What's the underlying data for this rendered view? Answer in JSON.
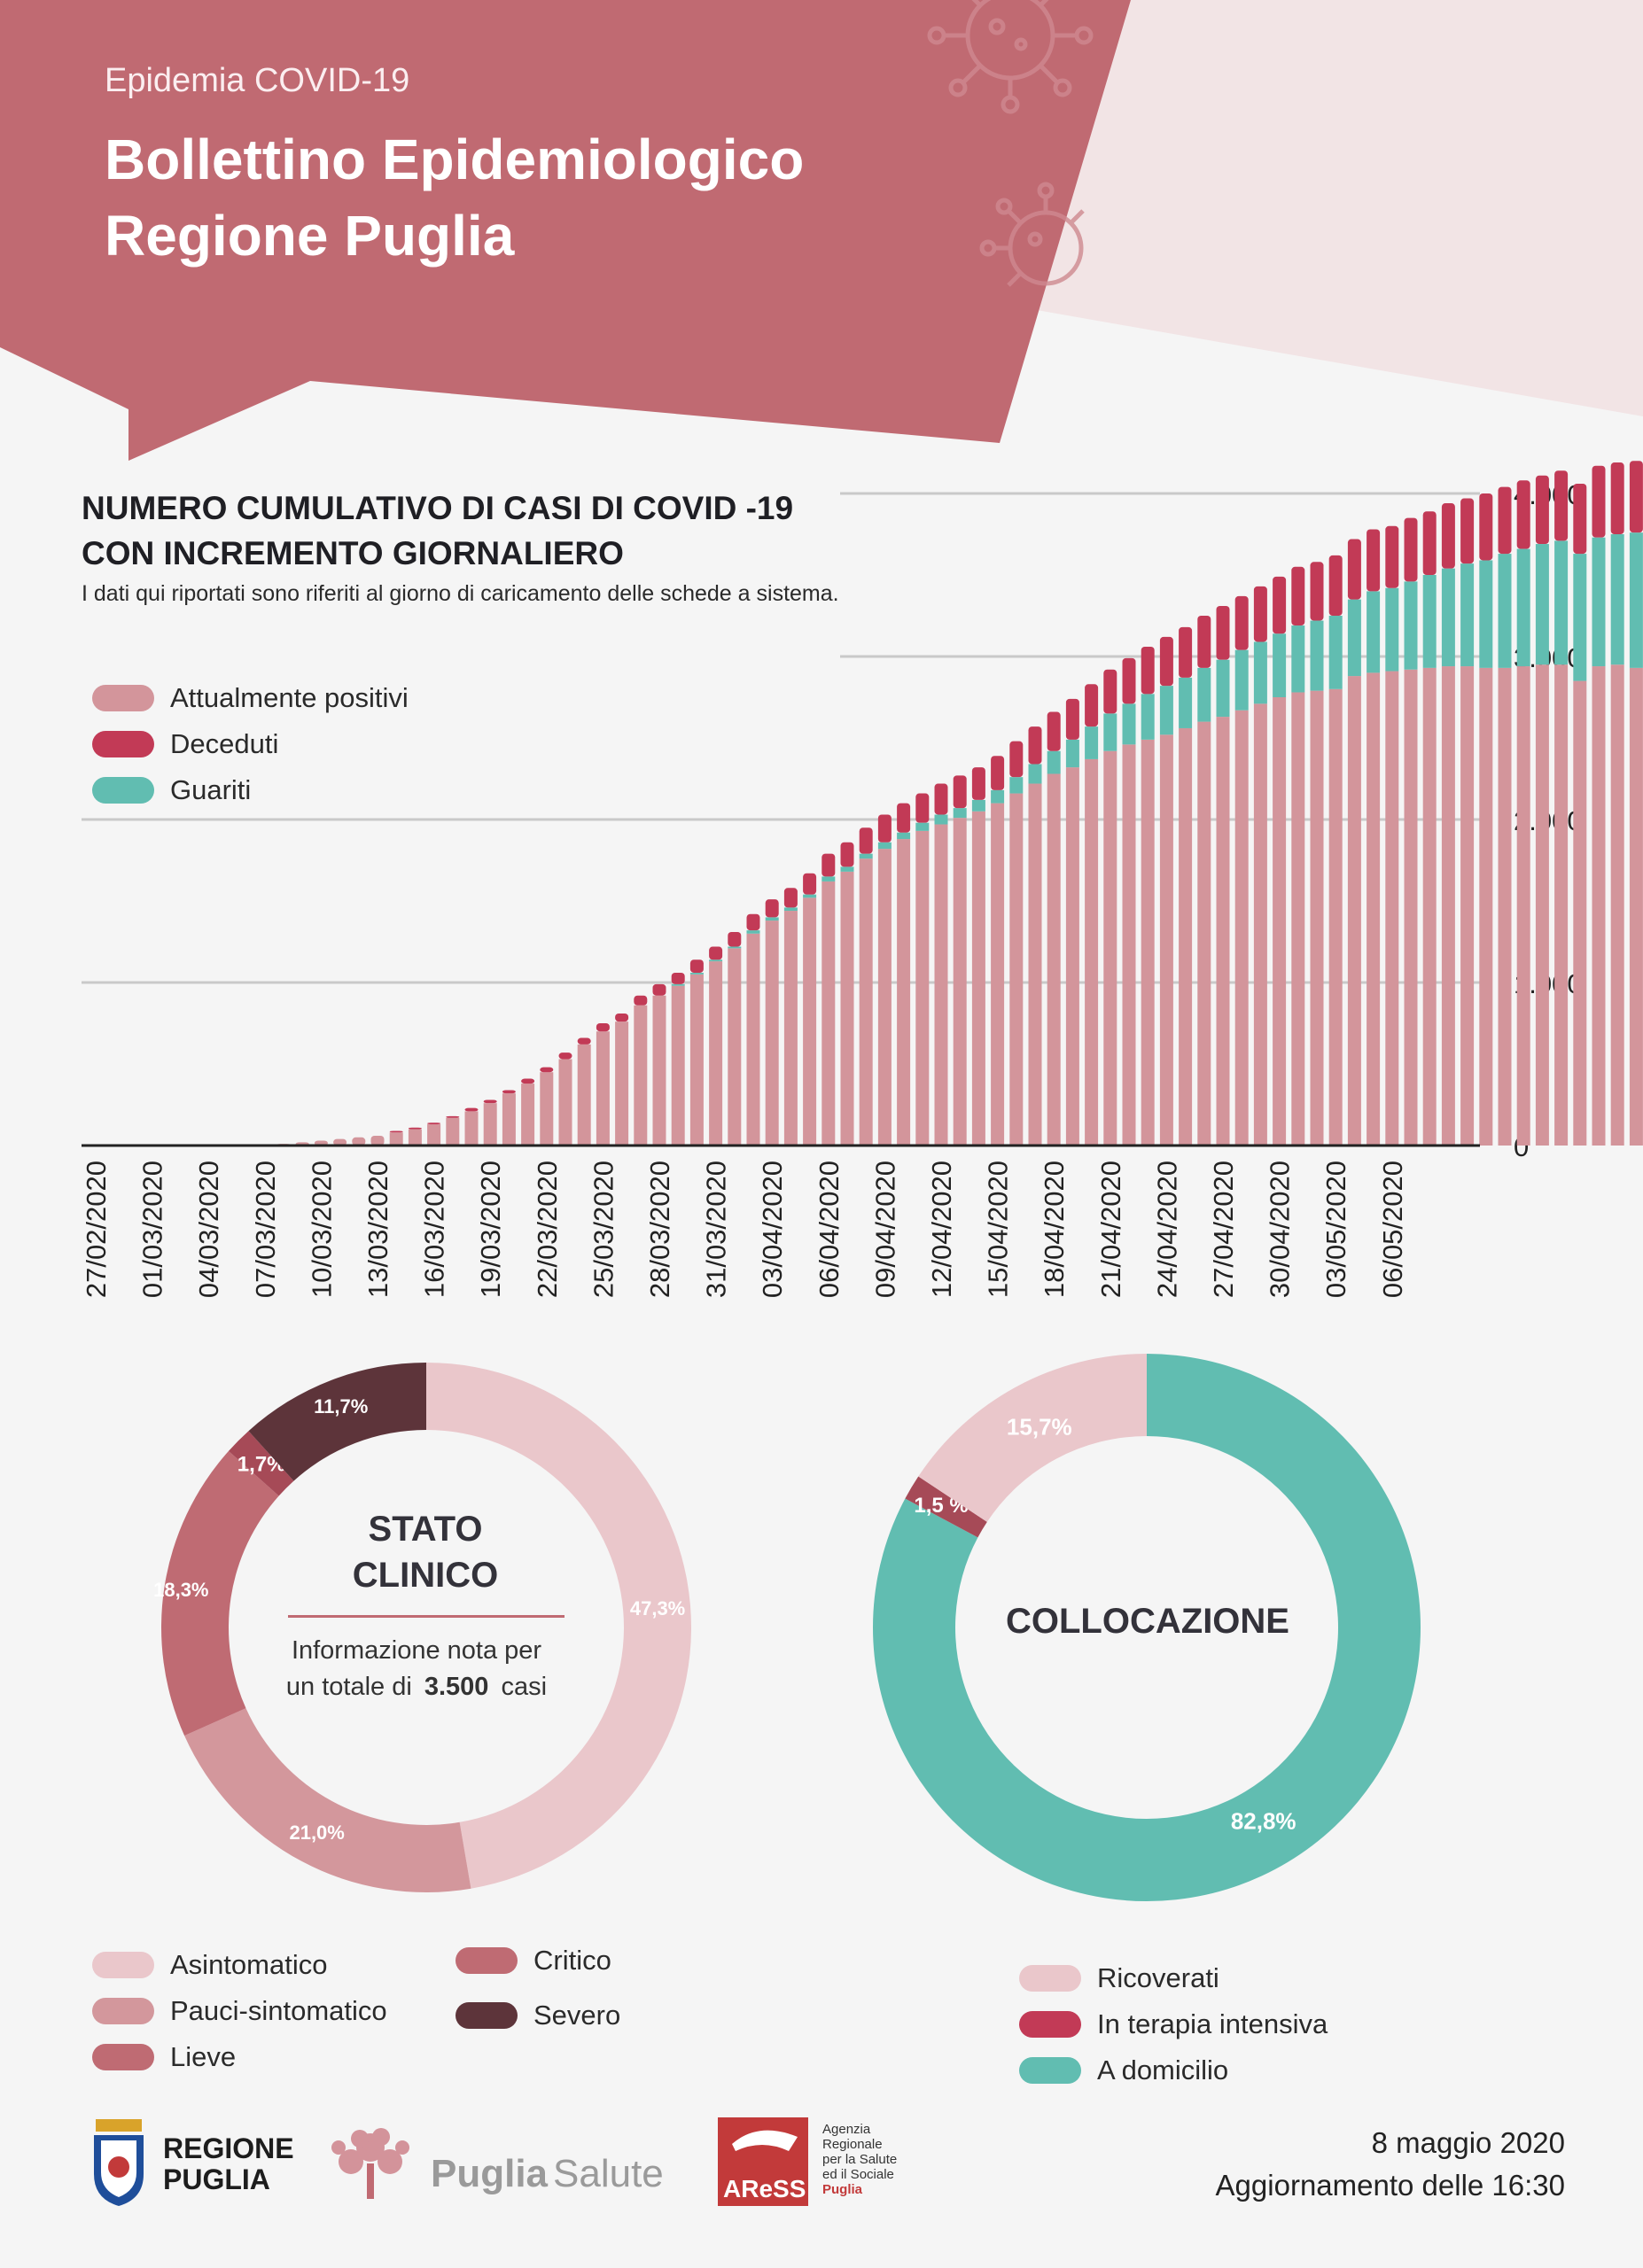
{
  "header": {
    "subtitle": "Epidemia COVID-19",
    "title_line1": "Bollettino Epidemiologico",
    "title_line2": "Regione Puglia"
  },
  "colors": {
    "header_rose": "#c06a72",
    "positivi": "#d3959b",
    "deceduti": "#c23a56",
    "guariti": "#61bdb1",
    "asintomatico": "#eac7cb",
    "pauci": "#d3979c",
    "lieve": "#bf6b73",
    "critico_segment": "#a64a57",
    "severo": "#5d343a",
    "ricoverati": "#eac7cb",
    "terapia_intensiva": "#a64a57",
    "domicilio": "#61bdb1"
  },
  "chart_data": [
    {
      "type": "bar",
      "stacked": true,
      "title_line1": "NUMERO CUMULATIVO DI CASI DI COVID -19",
      "title_line2": "CON INCREMENTO GIORNALIERO",
      "note": "I dati qui riportati sono riferiti al giorno di caricamento delle schede a sistema.",
      "y_ticks": [
        "0",
        "1.000",
        "2.000",
        "3.000",
        "4.000"
      ],
      "ylim": [
        0,
        4400
      ],
      "y_axis_side": "right",
      "grid": true,
      "legend_position": "top-left",
      "legend": [
        "Attualmente positivi",
        "Deceduti",
        "Guariti"
      ],
      "start_date": "27/02/2020",
      "x_tick_labels": [
        "27/02/2020",
        "01/03/2020",
        "04/03/2020",
        "07/03/2020",
        "10/03/2020",
        "13/03/2020",
        "16/03/2020",
        "19/03/2020",
        "22/03/2020",
        "25/03/2020",
        "28/03/2020",
        "31/03/2020",
        "03/04/2020",
        "06/04/2020",
        "09/04/2020",
        "12/04/2020",
        "15/04/2020",
        "18/04/2020",
        "21/04/2020",
        "24/04/2020",
        "27/04/2020",
        "30/04/2020",
        "03/05/2020",
        "06/05/2020"
      ],
      "series": [
        {
          "name": "Attualmente positivi",
          "values": [
            0,
            0,
            0,
            0,
            0,
            0,
            0,
            0,
            0,
            0,
            10,
            20,
            30,
            40,
            50,
            60,
            80,
            100,
            130,
            170,
            210,
            260,
            320,
            380,
            450,
            530,
            620,
            700,
            760,
            860,
            920,
            980,
            1050,
            1130,
            1210,
            1300,
            1380,
            1440,
            1520,
            1620,
            1680,
            1760,
            1820,
            1880,
            1930,
            1970,
            2010,
            2050,
            2100,
            2160,
            2220,
            2280,
            2320,
            2370,
            2420,
            2460,
            2490,
            2520,
            2560,
            2600,
            2630,
            2670,
            2710,
            2750,
            2780,
            2790,
            2800,
            2880,
            2900,
            2910,
            2920,
            2930,
            2940,
            2940,
            2930,
            2930,
            2940,
            2950,
            2950,
            2850,
            2940,
            2950,
            2930,
            2900,
            2800,
            2740
          ]
        },
        {
          "name": "Guariti",
          "values": [
            0,
            0,
            0,
            0,
            0,
            0,
            0,
            0,
            0,
            0,
            0,
            0,
            0,
            0,
            0,
            0,
            0,
            0,
            0,
            0,
            0,
            0,
            0,
            0,
            0,
            0,
            0,
            0,
            0,
            0,
            0,
            10,
            10,
            10,
            10,
            20,
            20,
            20,
            20,
            30,
            30,
            30,
            40,
            40,
            50,
            60,
            60,
            70,
            80,
            100,
            120,
            140,
            170,
            200,
            230,
            250,
            280,
            300,
            310,
            330,
            350,
            370,
            380,
            390,
            410,
            430,
            450,
            470,
            500,
            510,
            540,
            570,
            600,
            630,
            660,
            700,
            720,
            740,
            760,
            780,
            790,
            800,
            830,
            860,
            1000,
            1080
          ]
        },
        {
          "name": "Deceduti",
          "values": [
            0,
            0,
            0,
            0,
            0,
            0,
            0,
            0,
            0,
            0,
            0,
            0,
            0,
            0,
            0,
            0,
            10,
            10,
            10,
            10,
            20,
            20,
            20,
            30,
            30,
            40,
            40,
            50,
            50,
            60,
            70,
            70,
            80,
            80,
            90,
            100,
            110,
            120,
            130,
            140,
            150,
            160,
            170,
            180,
            180,
            190,
            200,
            200,
            210,
            220,
            230,
            240,
            250,
            260,
            270,
            280,
            290,
            300,
            310,
            320,
            330,
            330,
            340,
            350,
            360,
            360,
            370,
            370,
            380,
            380,
            390,
            390,
            400,
            400,
            410,
            410,
            420,
            420,
            430,
            430,
            440,
            440,
            440,
            440,
            450,
            450
          ]
        }
      ]
    },
    {
      "type": "pie",
      "donut": true,
      "center_title_line1": "STATO",
      "center_title_line2": "CLINICO",
      "center_text_line1": "Informazione nota per",
      "center_text_prefix": "un totale di",
      "center_text_value": "3.500",
      "center_text_suffix": "casi",
      "slices": [
        {
          "name": "Asintomatico",
          "value": 47.3,
          "label": "47,3%"
        },
        {
          "name": "Pauci-sintomatico",
          "value": 21.0,
          "label": "21,0%"
        },
        {
          "name": "Lieve",
          "value": 18.3,
          "label": "18,3%"
        },
        {
          "name": "Critico",
          "value": 1.7,
          "label": "1,7%"
        },
        {
          "name": "Severo",
          "value": 11.7,
          "label": "11,7%"
        }
      ],
      "legend": [
        "Asintomatico",
        "Pauci-sintomatico",
        "Lieve",
        "Critico",
        "Severo"
      ]
    },
    {
      "type": "pie",
      "donut": true,
      "center_title": "COLLOCAZIONE",
      "slices": [
        {
          "name": "A domicilio",
          "value": 82.8,
          "label": "82,8%"
        },
        {
          "name": "In terapia intensiva",
          "value": 1.5,
          "label": "1,5 %"
        },
        {
          "name": "Ricoverati",
          "value": 15.7,
          "label": "15,7%"
        }
      ],
      "legend": [
        "Ricoverati",
        "In terapia intensiva",
        "A domicilio"
      ]
    }
  ],
  "legend_main": [
    "Attualmente positivi",
    "Deceduti",
    "Guariti"
  ],
  "legend_clinico": {
    "asintomatico": "Asintomatico",
    "pauci": "Pauci-sintomatico",
    "lieve": "Lieve",
    "critico": "Critico",
    "severo": "Severo"
  },
  "legend_collocazione": {
    "ricoverati": "Ricoverati",
    "terapia": "In terapia intensiva",
    "domicilio": "A domicilio"
  },
  "footer": {
    "logo_regione_line1": "REGIONE",
    "logo_regione_line2": "PUGLIA",
    "logo_puglia": "Puglia",
    "logo_salute": "Salute",
    "logo_aress": "AReSS",
    "aress_text": [
      "Agenzia",
      "Regionale",
      "per la Salute",
      "ed il Sociale",
      "Puglia"
    ],
    "date": "8 maggio 2020",
    "update": "Aggiornamento delle 16:30"
  }
}
